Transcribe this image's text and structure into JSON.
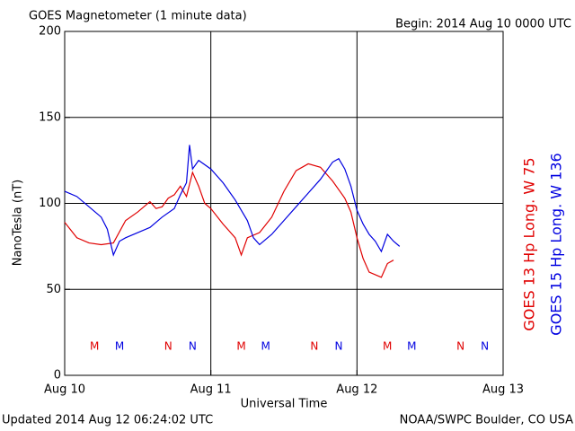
{
  "chart_data": {
    "type": "line",
    "title": "GOES Magnetometer (1 minute data)",
    "subtitle": "Begin:  2014 Aug 10 0000 UTC",
    "x_label": "Universal Time",
    "y_label": "NanoTesla (nT)",
    "footer_left": "Updated 2014 Aug 12 06:24:02 UTC",
    "footer_right": "NOAA/SWPC Boulder, CO USA",
    "xlim": [
      0,
      72
    ],
    "xticks": [
      {
        "value": 0,
        "label": "Aug 10"
      },
      {
        "value": 24,
        "label": "Aug 11"
      },
      {
        "value": 48,
        "label": "Aug 12"
      },
      {
        "value": 72,
        "label": "Aug 13"
      }
    ],
    "ylim": [
      0,
      200
    ],
    "yticks": [
      0,
      50,
      100,
      150,
      200
    ],
    "grid": true,
    "series": [
      {
        "name": "GOES 13 Hp  Long. W 75",
        "color": "#e00000",
        "x": [
          0,
          2,
          4,
          6,
          8,
          10,
          12,
          14,
          15,
          16,
          17,
          18,
          19,
          20,
          21,
          22,
          23,
          24,
          26,
          28,
          29,
          30,
          32,
          34,
          36,
          38,
          40,
          42,
          44,
          46,
          47,
          48,
          49,
          50,
          52,
          53,
          54
        ],
        "values": [
          89,
          80,
          77,
          76,
          77,
          90,
          95,
          101,
          97,
          98,
          103,
          105,
          110,
          104,
          118,
          110,
          100,
          97,
          88,
          80,
          70,
          80,
          83,
          92,
          107,
          119,
          123,
          121,
          113,
          103,
          95,
          80,
          68,
          60,
          57,
          65,
          67
        ]
      },
      {
        "name": "GOES 15 Hp  Long. W 136",
        "color": "#0000e0",
        "x": [
          0,
          2,
          4,
          6,
          7,
          8,
          9,
          10,
          12,
          14,
          16,
          18,
          19,
          20,
          20.5,
          21,
          22,
          24,
          26,
          28,
          30,
          31,
          32,
          34,
          36,
          38,
          40,
          42,
          44,
          45,
          46,
          47,
          48,
          49,
          50,
          51,
          52,
          53,
          54,
          55
        ],
        "values": [
          107,
          104,
          98,
          92,
          85,
          70,
          78,
          80,
          83,
          86,
          92,
          97,
          105,
          112,
          134,
          120,
          125,
          120,
          112,
          102,
          90,
          80,
          76,
          82,
          90,
          98,
          106,
          114,
          124,
          126,
          120,
          110,
          96,
          88,
          82,
          78,
          72,
          82,
          78,
          75
        ]
      }
    ],
    "markers": [
      {
        "label": "M",
        "x": 4.9,
        "series": 0
      },
      {
        "label": "M",
        "x": 9,
        "series": 1
      },
      {
        "label": "N",
        "x": 17,
        "series": 0
      },
      {
        "label": "N",
        "x": 21,
        "series": 1
      },
      {
        "label": "M",
        "x": 29,
        "series": 0
      },
      {
        "label": "M",
        "x": 33,
        "series": 1
      },
      {
        "label": "N",
        "x": 41,
        "series": 0
      },
      {
        "label": "N",
        "x": 45,
        "series": 1
      },
      {
        "label": "M",
        "x": 53,
        "series": 0
      },
      {
        "label": "M",
        "x": 57,
        "series": 1
      },
      {
        "label": "N",
        "x": 65,
        "series": 0
      },
      {
        "label": "N",
        "x": 69,
        "series": 1
      }
    ]
  }
}
